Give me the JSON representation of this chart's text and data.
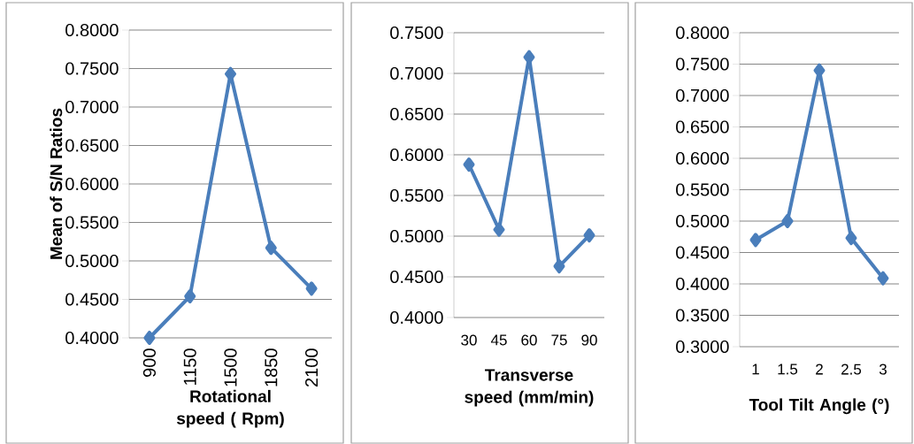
{
  "chart_data": [
    {
      "type": "line",
      "xlabel": "Rotational speed ( Rpm)",
      "ylabel": "Mean of S/N Ratios",
      "categories": [
        "900",
        "1150",
        "1500",
        "1850",
        "2100"
      ],
      "series": [
        {
          "color": "#4a7ebb",
          "values": [
            0.4,
            0.454,
            0.743,
            0.517,
            0.464
          ]
        }
      ],
      "ylim": [
        0.4,
        0.8
      ],
      "yticks": [
        {
          "value": 0.4,
          "label": "0.4000"
        },
        {
          "value": 0.45,
          "label": "0.4500"
        },
        {
          "value": 0.5,
          "label": "0.5000"
        },
        {
          "value": 0.55,
          "label": "0.5500"
        },
        {
          "value": 0.6,
          "label": "0.6000"
        },
        {
          "value": 0.65,
          "label": "0.6500"
        },
        {
          "value": 0.7,
          "label": "0.7000"
        },
        {
          "value": 0.75,
          "label": "0.7500"
        },
        {
          "value": 0.8,
          "label": "0.8000"
        }
      ],
      "grid": "y",
      "marker": "diamond"
    },
    {
      "type": "line",
      "xlabel": "Transverse speed (mm/min)",
      "categories": [
        "30",
        "45",
        "60",
        "75",
        "90"
      ],
      "series": [
        {
          "color": "#4a7ebb",
          "values": [
            0.588,
            0.508,
            0.72,
            0.463,
            0.501
          ]
        }
      ],
      "ylim": [
        0.4,
        0.75
      ],
      "yticks": [
        {
          "value": 0.4,
          "label": "0.4000"
        },
        {
          "value": 0.45,
          "label": "0.4500"
        },
        {
          "value": 0.5,
          "label": "0.5000"
        },
        {
          "value": 0.55,
          "label": "0.5500"
        },
        {
          "value": 0.6,
          "label": "0.6000"
        },
        {
          "value": 0.65,
          "label": "0.6500"
        },
        {
          "value": 0.7,
          "label": "0.7000"
        },
        {
          "value": 0.75,
          "label": "0.7500"
        }
      ],
      "grid": "y",
      "marker": "diamond"
    },
    {
      "type": "line",
      "xlabel": "Tool Tilt Angle (°)",
      "categories": [
        "1",
        "1.5",
        "2",
        "2.5",
        "3"
      ],
      "series": [
        {
          "color": "#4a7ebb",
          "values": [
            0.47,
            0.5,
            0.74,
            0.473,
            0.409
          ]
        }
      ],
      "ylim": [
        0.3,
        0.8
      ],
      "yticks": [
        {
          "value": 0.3,
          "label": "0.3000"
        },
        {
          "value": 0.35,
          "label": "0.3500"
        },
        {
          "value": 0.4,
          "label": "0.4000"
        },
        {
          "value": 0.45,
          "label": "0.4500"
        },
        {
          "value": 0.5,
          "label": "0.5000"
        },
        {
          "value": 0.55,
          "label": "0.5500"
        },
        {
          "value": 0.6,
          "label": "0.6000"
        },
        {
          "value": 0.65,
          "label": "0.6500"
        },
        {
          "value": 0.7,
          "label": "0.7000"
        },
        {
          "value": 0.75,
          "label": "0.7500"
        },
        {
          "value": 0.8,
          "label": "0.8000"
        }
      ],
      "grid": "y",
      "marker": "diamond"
    }
  ]
}
